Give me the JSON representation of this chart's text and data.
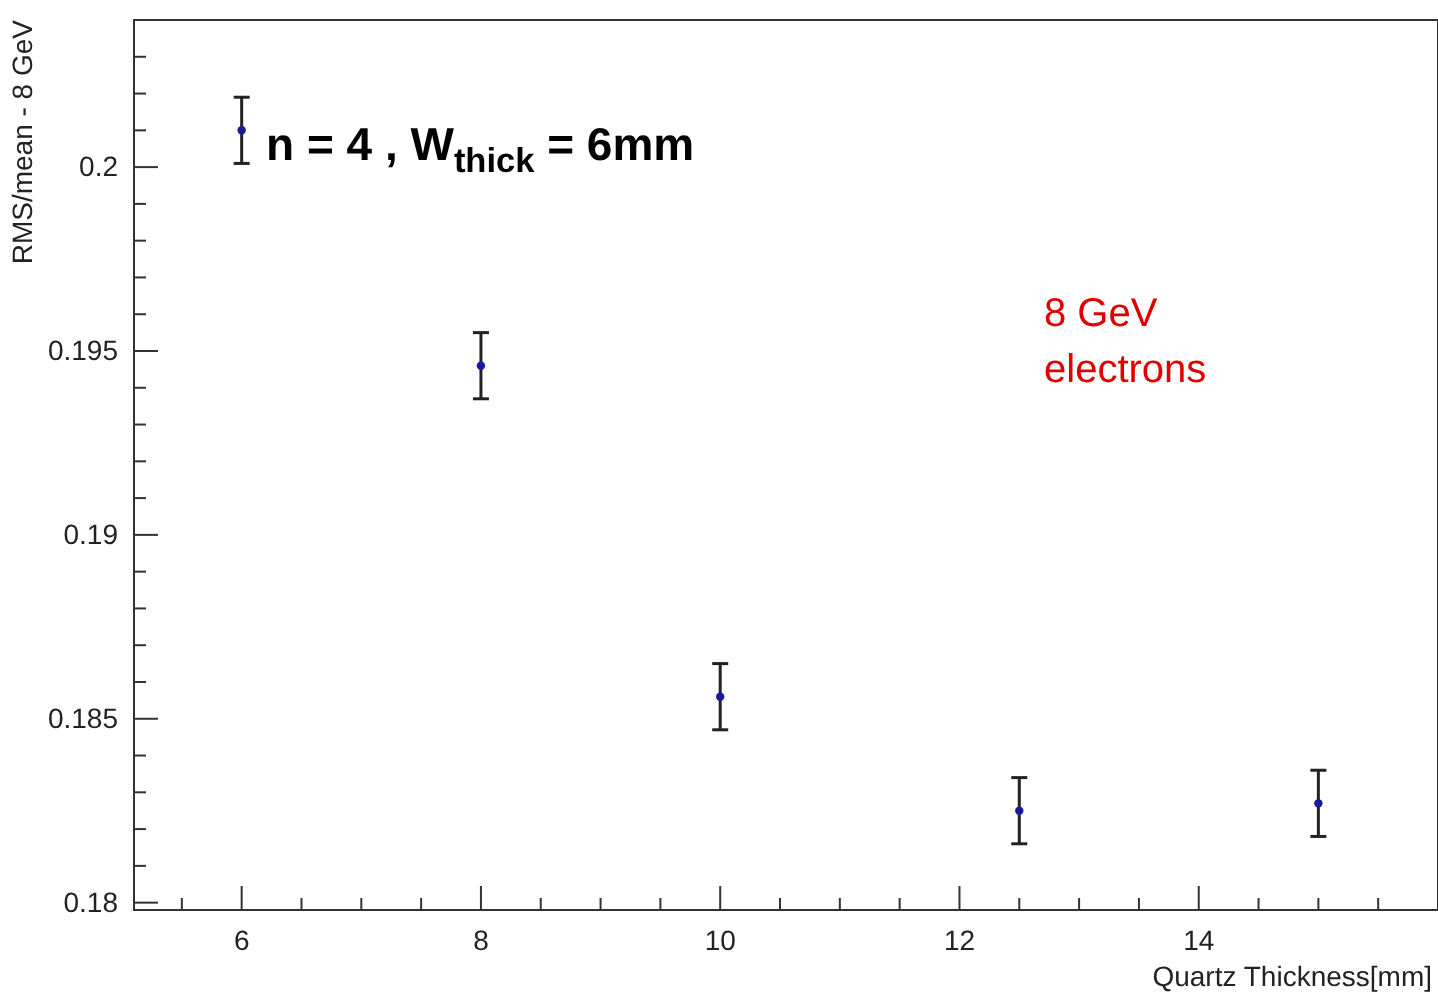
{
  "chart_data": {
    "type": "scatter",
    "xlabel": "Quartz Thickness[mm]",
    "ylabel": "RMS/mean - 8 GeV",
    "x": [
      6,
      8,
      10,
      12.5,
      15
    ],
    "values": [
      0.201,
      0.1946,
      0.1856,
      0.1825,
      0.1827
    ],
    "errors": [
      0.0009,
      0.0009,
      0.0009,
      0.0009,
      0.0009
    ],
    "color": "#1a1aa0",
    "marker": "circle",
    "xlim": [
      5.1,
      16
    ],
    "ylim": [
      0.1798,
      0.204
    ],
    "xticks": [
      {
        "value": 5.5,
        "label": null
      },
      6,
      {
        "value": 6.5,
        "label": null
      },
      {
        "value": 7,
        "label": null
      },
      {
        "value": 7.5,
        "label": null
      },
      8,
      {
        "value": 8.5,
        "label": null
      },
      {
        "value": 9,
        "label": null
      },
      {
        "value": 9.5,
        "label": null
      },
      10,
      {
        "value": 10.5,
        "label": null
      },
      {
        "value": 11,
        "label": null
      },
      {
        "value": 11.5,
        "label": null
      },
      12,
      {
        "value": 12.5,
        "label": null
      },
      {
        "value": 13,
        "label": null
      },
      {
        "value": 13.5,
        "label": null
      },
      14,
      {
        "value": 14.5,
        "label": null
      },
      {
        "value": 15,
        "label": null
      },
      {
        "value": 15.5,
        "label": null
      }
    ],
    "yticks": [
      0.18,
      {
        "value": 0.181,
        "label": null
      },
      {
        "value": 0.182,
        "label": null
      },
      {
        "value": 0.183,
        "label": null
      },
      {
        "value": 0.184,
        "label": null
      },
      0.185,
      {
        "value": 0.186,
        "label": null
      },
      {
        "value": 0.187,
        "label": null
      },
      {
        "value": 0.188,
        "label": null
      },
      {
        "value": 0.189,
        "label": null
      },
      0.19,
      {
        "value": 0.191,
        "label": null
      },
      {
        "value": 0.192,
        "label": null
      },
      {
        "value": 0.193,
        "label": null
      },
      {
        "value": 0.194,
        "label": null
      },
      0.195,
      {
        "value": 0.196,
        "label": null
      },
      {
        "value": 0.197,
        "label": null
      },
      {
        "value": 0.198,
        "label": null
      },
      {
        "value": 0.199,
        "label": null
      },
      0.2,
      {
        "value": 0.201,
        "label": null
      },
      {
        "value": 0.202,
        "label": null
      },
      {
        "value": 0.203,
        "label": null
      }
    ],
    "grid": false,
    "annotations": [
      "n = 4 , W$_{thick}$ = 6mm",
      "8 GeV electrons"
    ]
  }
}
